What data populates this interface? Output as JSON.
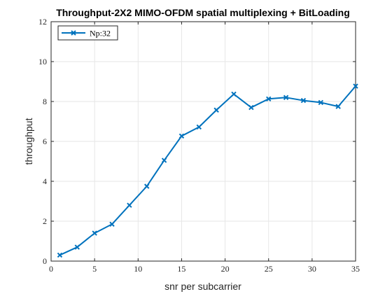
{
  "chart_data": {
    "type": "line",
    "title": "Throughput-2X2 MIMO-OFDM spatial multiplexing + BitLoading",
    "xlabel": "snr per subcarrier",
    "ylabel": "throughput",
    "xlim": [
      0,
      35
    ],
    "ylim": [
      0,
      12
    ],
    "xticks": [
      0,
      5,
      10,
      15,
      20,
      25,
      30,
      35
    ],
    "yticks": [
      0,
      2,
      4,
      6,
      8,
      10,
      12
    ],
    "grid": true,
    "legend_position": "top-left",
    "colors": {
      "series": "#0072bd",
      "grid": "#e6e6e6",
      "axis": "#262626"
    },
    "marker": "x",
    "series": [
      {
        "name": "Np:32",
        "x": [
          1,
          3,
          5,
          7,
          9,
          11,
          13,
          15,
          17,
          19,
          21,
          23,
          25,
          27,
          29,
          31,
          33,
          35
        ],
        "y": [
          0.3,
          0.7,
          1.4,
          1.85,
          2.8,
          3.75,
          5.05,
          6.27,
          6.72,
          7.57,
          8.37,
          7.7,
          8.13,
          8.2,
          8.05,
          7.95,
          7.75,
          8.77
        ]
      }
    ]
  }
}
